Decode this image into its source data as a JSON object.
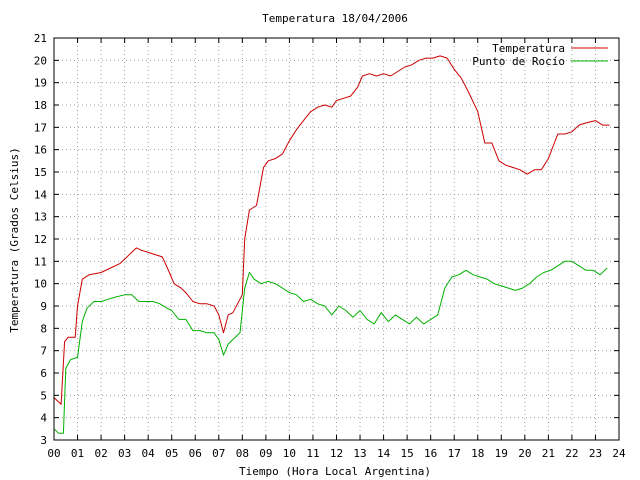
{
  "chart_data": {
    "type": "line",
    "title": "Temperatura 18/04/2006",
    "xlabel": "Tiempo (Hora Local Argentina)",
    "ylabel": "Temperatura (Grados Celsius)",
    "xlim": [
      0,
      24
    ],
    "ylim": [
      3,
      21
    ],
    "x_ticks": [
      "00",
      "01",
      "02",
      "03",
      "04",
      "05",
      "06",
      "07",
      "08",
      "09",
      "10",
      "11",
      "12",
      "13",
      "14",
      "15",
      "16",
      "17",
      "18",
      "19",
      "20",
      "21",
      "22",
      "23",
      "24"
    ],
    "y_ticks": [
      3,
      4,
      5,
      6,
      7,
      8,
      9,
      10,
      11,
      12,
      13,
      14,
      15,
      16,
      17,
      18,
      19,
      20,
      21
    ],
    "grid": true,
    "legend_position": "top-right",
    "series": [
      {
        "name": "Temperatura",
        "color": "#cc0000",
        "x": [
          0.0,
          0.3,
          0.45,
          0.6,
          0.9,
          1.0,
          1.2,
          1.5,
          2.0,
          2.4,
          2.8,
          3.0,
          3.3,
          3.5,
          3.7,
          4.0,
          4.3,
          4.6,
          4.9,
          5.1,
          5.4,
          5.6,
          5.9,
          6.2,
          6.5,
          6.8,
          7.0,
          7.2,
          7.4,
          7.6,
          8.0,
          8.1,
          8.3,
          8.6,
          8.9,
          9.1,
          9.4,
          9.7,
          10.0,
          10.3,
          10.6,
          10.9,
          11.2,
          11.5,
          11.8,
          12.0,
          12.3,
          12.6,
          12.9,
          13.1,
          13.4,
          13.7,
          14.0,
          14.3,
          14.6,
          14.9,
          15.2,
          15.5,
          15.8,
          16.1,
          16.4,
          16.7,
          17.0,
          17.3,
          17.6,
          18.0,
          18.3,
          18.6,
          18.9,
          19.2,
          19.5,
          19.8,
          20.1,
          20.4,
          20.7,
          21.0,
          21.4,
          21.7,
          22.0,
          22.3,
          22.6,
          23.0,
          23.3,
          23.6
        ],
        "y": [
          4.9,
          4.6,
          7.4,
          7.6,
          7.6,
          9.0,
          10.2,
          10.4,
          10.5,
          10.7,
          10.9,
          11.1,
          11.4,
          11.6,
          11.5,
          11.4,
          11.3,
          11.2,
          10.5,
          10.0,
          9.8,
          9.6,
          9.2,
          9.1,
          9.1,
          9.0,
          8.6,
          7.8,
          8.6,
          8.7,
          9.5,
          12.0,
          13.3,
          13.5,
          15.2,
          15.5,
          15.6,
          15.8,
          16.4,
          16.9,
          17.3,
          17.7,
          17.9,
          18.0,
          17.9,
          18.2,
          18.3,
          18.4,
          18.8,
          19.3,
          19.4,
          19.3,
          19.4,
          19.3,
          19.5,
          19.7,
          19.8,
          20.0,
          20.1,
          20.1,
          20.2,
          20.1,
          19.6,
          19.2,
          18.6,
          17.7,
          16.3,
          16.3,
          15.5,
          15.3,
          15.2,
          15.1,
          14.9,
          15.1,
          15.1,
          15.6,
          16.7,
          16.7,
          16.8,
          17.1,
          17.2,
          17.3,
          17.1,
          17.1
        ]
      },
      {
        "name": "Punto de Rocío",
        "color": "#00b000",
        "x": [
          0.0,
          0.2,
          0.4,
          0.5,
          0.7,
          1.0,
          1.2,
          1.4,
          1.7,
          2.0,
          2.3,
          2.6,
          3.0,
          3.3,
          3.6,
          3.9,
          4.2,
          4.5,
          4.8,
          5.0,
          5.3,
          5.6,
          5.9,
          6.2,
          6.5,
          6.8,
          7.0,
          7.2,
          7.4,
          7.6,
          7.9,
          8.1,
          8.3,
          8.5,
          8.8,
          9.1,
          9.4,
          9.7,
          10.0,
          10.3,
          10.6,
          10.9,
          11.2,
          11.5,
          11.8,
          12.1,
          12.4,
          12.7,
          13.0,
          13.3,
          13.6,
          13.9,
          14.2,
          14.5,
          14.8,
          15.1,
          15.4,
          15.7,
          16.0,
          16.3,
          16.6,
          16.9,
          17.2,
          17.5,
          17.8,
          18.1,
          18.4,
          18.7,
          19.0,
          19.3,
          19.6,
          19.9,
          20.2,
          20.5,
          20.8,
          21.1,
          21.4,
          21.7,
          22.0,
          22.3,
          22.6,
          22.9,
          23.2,
          23.5
        ],
        "y": [
          3.5,
          3.3,
          3.3,
          6.2,
          6.6,
          6.7,
          8.3,
          8.9,
          9.2,
          9.2,
          9.3,
          9.4,
          9.5,
          9.5,
          9.2,
          9.2,
          9.2,
          9.1,
          8.9,
          8.8,
          8.4,
          8.4,
          7.9,
          7.9,
          7.8,
          7.8,
          7.5,
          6.8,
          7.3,
          7.5,
          7.8,
          9.8,
          10.5,
          10.2,
          10.0,
          10.1,
          10.0,
          9.8,
          9.6,
          9.5,
          9.2,
          9.3,
          9.1,
          9.0,
          8.6,
          9.0,
          8.8,
          8.5,
          8.8,
          8.4,
          8.2,
          8.7,
          8.3,
          8.6,
          8.4,
          8.2,
          8.5,
          8.2,
          8.4,
          8.6,
          9.8,
          10.3,
          10.4,
          10.6,
          10.4,
          10.3,
          10.2,
          10.0,
          9.9,
          9.8,
          9.7,
          9.8,
          10.0,
          10.3,
          10.5,
          10.6,
          10.8,
          11.0,
          11.0,
          10.8,
          10.6,
          10.6,
          10.4,
          10.7
        ]
      }
    ]
  }
}
